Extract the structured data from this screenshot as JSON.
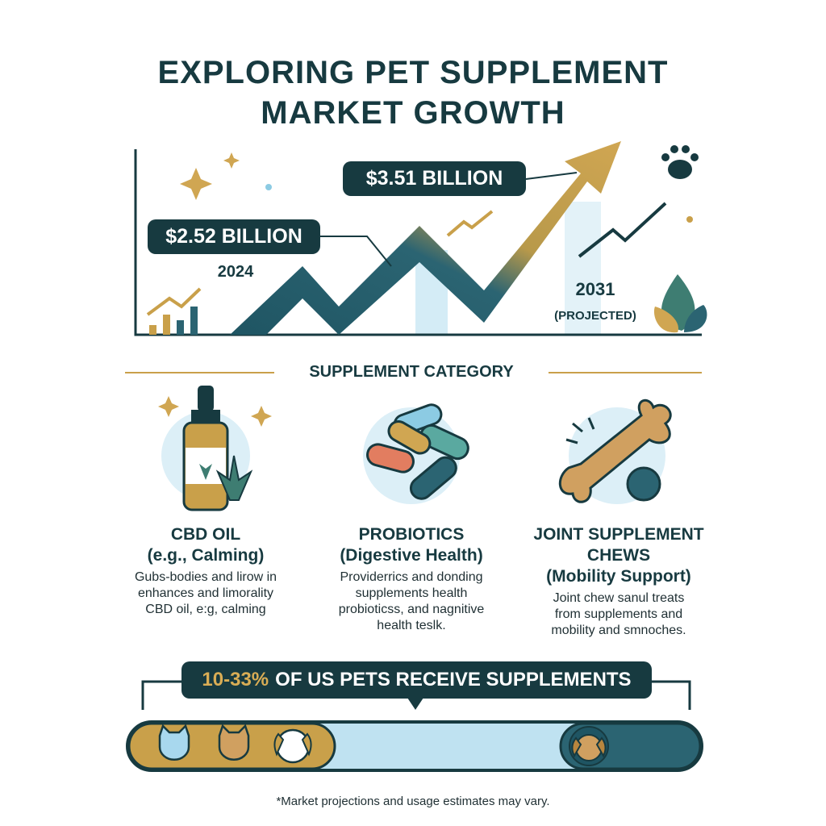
{
  "title": {
    "line1": "EXPLORING PET SUPPLEMENT",
    "line2": "MARKET GROWTH"
  },
  "growth": {
    "start": {
      "value": "$2.52 BILLION",
      "year": "2024"
    },
    "end": {
      "value": "$3.51 BILLION",
      "year": "2031",
      "note": "(PROJECTED)"
    }
  },
  "section_title": "SUPPLEMENT CATEGORY",
  "categories": [
    {
      "icon": "cbd-oil-bottle-icon",
      "title": "CBD OIL",
      "subtitle": "(e.g., Calming)",
      "body": [
        "Gubs-bodies and lirow in",
        "enhances and limorality",
        "CBD oil, e:g, calming"
      ]
    },
    {
      "icon": "probiotic-capsules-icon",
      "title": "PROBIOTICS",
      "subtitle": "(Digestive Health)",
      "body": [
        "Providerrics and donding",
        "supplements health",
        "probioticss, and nagnitive",
        "health teslk."
      ]
    },
    {
      "icon": "bone-chew-icon",
      "title": "JOINT SUPPLEMENT",
      "title2": "CHEWS",
      "subtitle": "(Mobility Support)",
      "body": [
        "Joint chew sanul treats",
        "from supplements and",
        "mobility and smnoches."
      ]
    }
  ],
  "usage": {
    "highlight": "10-33%",
    "text": "OF US PETS RECEIVE SUPPLEMENTS",
    "fill_range_percent": [
      10,
      33
    ]
  },
  "footnote": "*Market projections and usage estimates may vary.",
  "colors": {
    "dark_teal": "#173a40",
    "teal": "#2b6472",
    "gold": "#c9a04a",
    "light_blue": "#cfe8f3"
  }
}
